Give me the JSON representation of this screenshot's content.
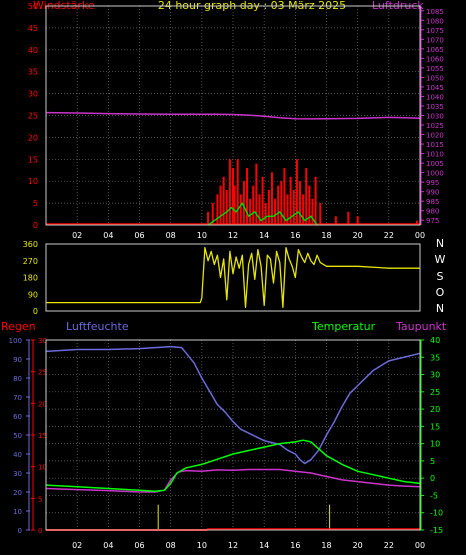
{
  "title": "24 hour graph day : 03 März 2025",
  "colors": {
    "wind": "#ff0000",
    "gust": "#00d800",
    "pressure": "#cc33cc",
    "direction": "#e6e600",
    "rain": "#ff0000",
    "humidity": "#6b6bdc",
    "temperature": "#00ff00",
    "dewpoint": "#cc33cc",
    "dir_letters": "#ffffff",
    "frame": "#cccccc",
    "grid": "#707070",
    "background": "#000000"
  },
  "chart_data": [
    {
      "type": "line",
      "panel": "wind-pressure",
      "title": "24 hour graph day : 03 März 2025",
      "ylabel": "Windstärke",
      "y2label": "Luftdruck",
      "ylim": [
        0,
        50
      ],
      "y_ticks": [
        0,
        5,
        10,
        15,
        20,
        25,
        30,
        35,
        40,
        45,
        50
      ],
      "y2lim": [
        972.5,
        1087.5
      ],
      "y2_ticks": [
        975,
        980,
        985,
        990,
        995,
        1000,
        1005,
        1010,
        1015,
        1020,
        1025,
        1030,
        1035,
        1040,
        1045,
        1050,
        1055,
        1060,
        1065,
        1070,
        1075,
        1080,
        1085
      ],
      "xlim": [
        0,
        24
      ],
      "x_ticks": [
        "02",
        "04",
        "06",
        "08",
        "10",
        "12",
        "14",
        "16",
        "18",
        "20",
        "22",
        "00"
      ],
      "grid": true,
      "series": [
        {
          "key": "pressure",
          "axis": "right",
          "x": [
            0,
            2,
            4,
            6,
            8,
            10,
            11,
            12,
            13,
            14,
            15,
            16,
            17,
            18,
            20,
            22,
            23,
            24
          ],
          "values": [
            1031.5,
            1031.3,
            1031,
            1030.8,
            1030.7,
            1030.7,
            1030.7,
            1030.5,
            1030.2,
            1029.6,
            1028.8,
            1028.3,
            1028.2,
            1028.3,
            1028.5,
            1029,
            1028.8,
            1028.6
          ]
        },
        {
          "key": "wind",
          "axis": "left",
          "style": "bars",
          "x": [
            10.4,
            10.7,
            11,
            11.2,
            11.4,
            11.6,
            11.8,
            12,
            12.1,
            12.3,
            12.5,
            12.7,
            12.9,
            13.1,
            13.3,
            13.5,
            13.7,
            13.9,
            14.1,
            14.3,
            14.5,
            14.7,
            14.9,
            15.1,
            15.3,
            15.5,
            15.7,
            15.9,
            16.1,
            16.3,
            16.5,
            16.7,
            16.9,
            17.1,
            17.3,
            17.6,
            18.6,
            19.4,
            20,
            23.8
          ],
          "values": [
            3,
            5,
            7,
            9,
            11,
            8,
            15,
            13,
            9,
            15,
            7,
            10,
            13,
            6,
            9,
            14,
            7,
            11,
            5,
            8,
            12,
            6,
            9,
            10,
            13,
            7,
            11,
            8,
            15,
            10,
            7,
            13,
            9,
            6,
            11,
            5,
            2,
            3,
            2,
            1
          ]
        },
        {
          "key": "gust",
          "axis": "left",
          "x": [
            10.4,
            10.8,
            11.2,
            11.6,
            11.9,
            12.2,
            12.6,
            13,
            13.4,
            13.8,
            14.2,
            14.6,
            15,
            15.4,
            15.8,
            16.2,
            16.6,
            17,
            17.4
          ],
          "values": [
            0,
            1,
            2,
            3,
            4,
            3,
            5,
            2,
            3,
            1,
            2,
            2,
            3,
            1,
            2,
            3,
            1,
            2,
            0
          ]
        }
      ]
    },
    {
      "type": "line",
      "panel": "wind-direction",
      "ylim": [
        0,
        360
      ],
      "y_ticks": [
        0,
        90,
        180,
        270,
        360
      ],
      "direction_letters": [
        "N",
        "W",
        "S",
        "O",
        "N"
      ],
      "xlim": [
        0,
        24
      ],
      "series": [
        {
          "key": "direction",
          "x": [
            0,
            9.9,
            10,
            10.2,
            10.4,
            10.6,
            10.8,
            11,
            11.2,
            11.4,
            11.6,
            11.8,
            12,
            12.2,
            12.4,
            12.6,
            12.8,
            13,
            13.2,
            13.4,
            13.6,
            13.8,
            14,
            14.2,
            14.4,
            14.6,
            14.8,
            15,
            15.2,
            15.4,
            15.6,
            15.8,
            16,
            16.2,
            16.4,
            16.6,
            16.8,
            17,
            17.2,
            17.4,
            17.6,
            18,
            20,
            22,
            24
          ],
          "values": [
            45,
            45,
            70,
            340,
            270,
            320,
            250,
            300,
            180,
            280,
            60,
            320,
            200,
            290,
            230,
            300,
            20,
            250,
            310,
            170,
            330,
            240,
            30,
            300,
            280,
            150,
            320,
            260,
            20,
            340,
            280,
            240,
            180,
            330,
            290,
            260,
            310,
            270,
            250,
            300,
            260,
            240,
            240,
            230,
            230
          ]
        }
      ]
    },
    {
      "type": "line",
      "panel": "rain-humidity-temperature",
      "labels": {
        "rain": "Regen",
        "humidity": "Luftfeuchte",
        "temperature": "Temperatur",
        "dewpoint": "Taupunkt"
      },
      "humidity_axis": {
        "ylim": [
          0,
          100
        ],
        "ticks": [
          0,
          10,
          20,
          30,
          40,
          50,
          60,
          70,
          80,
          90,
          100
        ]
      },
      "rain_axis": {
        "ylim": [
          0,
          30
        ],
        "ticks": [
          0,
          5,
          10,
          15,
          20,
          25,
          30
        ]
      },
      "temperature_axis": {
        "ylim": [
          -15,
          40
        ],
        "ticks": [
          -15,
          -10,
          -5,
          0,
          5,
          10,
          15,
          20,
          25,
          30,
          35,
          40
        ]
      },
      "xlim": [
        0,
        24
      ],
      "x_ticks": [
        "02",
        "04",
        "06",
        "08",
        "10",
        "12",
        "14",
        "16",
        "18",
        "20",
        "22",
        "00"
      ],
      "grid": true,
      "series": [
        {
          "key": "humidity",
          "axis": "humidity",
          "x": [
            0,
            2,
            4,
            6,
            7,
            8,
            8.7,
            9,
            9.5,
            10,
            10.5,
            11,
            11.5,
            12,
            12.5,
            13,
            13.5,
            14,
            14.5,
            15,
            15.5,
            16,
            16.3,
            16.6,
            17,
            17.5,
            18,
            18.5,
            19,
            19.5,
            20,
            21,
            22,
            23,
            24
          ],
          "values": [
            94,
            95,
            95,
            95.5,
            96,
            96.5,
            96,
            93,
            88,
            80,
            73,
            66,
            62,
            57,
            53,
            51,
            49,
            47,
            46,
            45,
            42,
            40,
            37,
            35,
            37,
            42,
            50,
            57,
            65,
            72,
            76,
            84,
            89,
            91,
            93
          ]
        },
        {
          "key": "rain",
          "axis": "rain",
          "x": [
            0,
            10.3,
            10.4,
            24
          ],
          "values": [
            0,
            0,
            1,
            1
          ]
        },
        {
          "key": "rain_spikes",
          "axis": "rain",
          "style": "bars",
          "x": [
            7.2,
            18.2
          ],
          "values": [
            4,
            4
          ]
        },
        {
          "key": "temperature",
          "axis": "temperature",
          "x": [
            0,
            2,
            4,
            6,
            7,
            7.6,
            8,
            8.4,
            9,
            10,
            11,
            12,
            13,
            14,
            15,
            16,
            16.5,
            17,
            17.5,
            18,
            19,
            20,
            21,
            22,
            23,
            24
          ],
          "values": [
            -2,
            -2.5,
            -3,
            -3.5,
            -3.8,
            -3.5,
            -1.5,
            1.5,
            3,
            4,
            5.5,
            7,
            8,
            9,
            10,
            10.5,
            11,
            10.5,
            8.5,
            6.5,
            4,
            2,
            1,
            0,
            -1,
            -1.5
          ]
        },
        {
          "key": "dewpoint",
          "axis": "temperature",
          "x": [
            0,
            2,
            4,
            6,
            7,
            7.6,
            8,
            8.5,
            9,
            10,
            11,
            12,
            13,
            14,
            15,
            16,
            17,
            18,
            19,
            20,
            21,
            22,
            23,
            24
          ],
          "values": [
            -3,
            -3.3,
            -3.6,
            -4,
            -4,
            -3.5,
            -0.5,
            1.8,
            2.2,
            2,
            2.4,
            2.3,
            2.5,
            2.5,
            2.5,
            2,
            1.5,
            0.5,
            -0.5,
            -1,
            -1.5,
            -2,
            -2.3,
            -2.5
          ]
        }
      ]
    }
  ]
}
